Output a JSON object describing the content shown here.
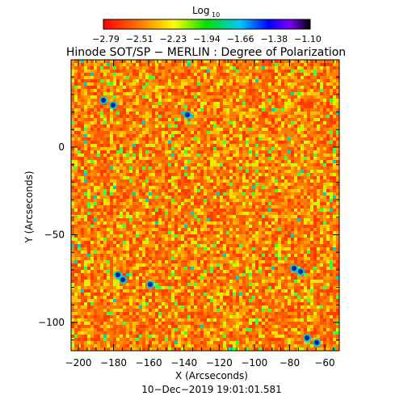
{
  "colorbar": {
    "title": "Log",
    "title_sub": "10",
    "ticks": [
      "−2.79",
      "−2.51",
      "−2.23",
      "−1.94",
      "−1.66",
      "−1.38",
      "−1.10"
    ]
  },
  "plot": {
    "title": "Hinode SOT/SP − MERLIN : Degree of Polarization",
    "xlabel": "X (Arcseconds)",
    "ylabel": "Y (Arcseconds)",
    "xticks": [
      "−200",
      "−180",
      "−160",
      "−140",
      "−120",
      "−100",
      "−80",
      "−60"
    ],
    "yticks": [
      "0",
      "−50",
      "−100"
    ],
    "timestamp": "10−Dec−2019 19:01:01.581"
  },
  "colors": {
    "background": "#ffffff",
    "axis": "#000000",
    "field_base": "#ff6a00"
  }
}
